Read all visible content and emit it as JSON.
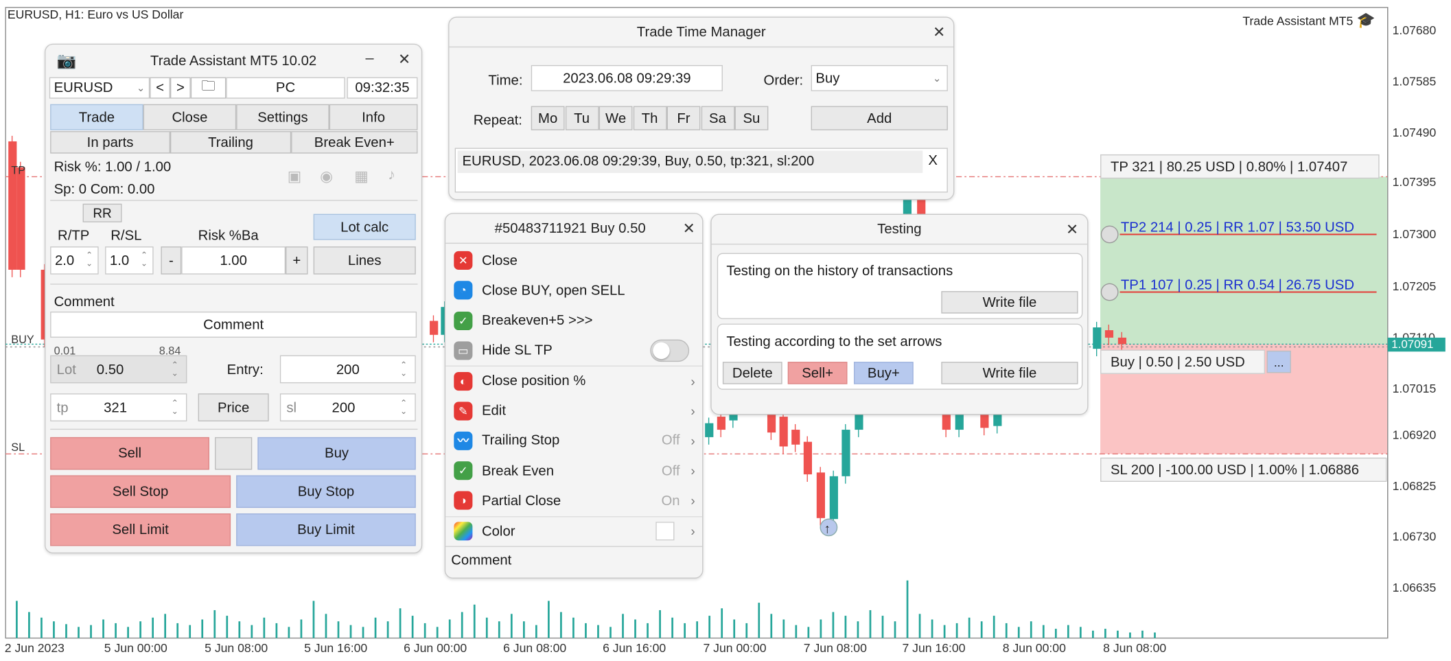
{
  "chart": {
    "title": "EURUSD, H1:  Euro vs US Dollar",
    "brand": "Trade Assistant MT5",
    "price_ticks": [
      "1.07680",
      "1.07585",
      "1.07490",
      "1.07395",
      "1.07300",
      "1.07205",
      "1.07110",
      "1.07015",
      "1.06920",
      "1.06825",
      "1.06730",
      "1.06635"
    ],
    "current_price": "1.07091",
    "time_ticks": [
      "2 Jun 2023",
      "5 Jun 00:00",
      "5 Jun 08:00",
      "5 Jun 16:00",
      "6 Jun 00:00",
      "6 Jun 08:00",
      "6 Jun 16:00",
      "7 Jun 00:00",
      "7 Jun 08:00",
      "7 Jun 16:00",
      "8 Jun 00:00",
      "8 Jun 08:00"
    ],
    "line_labels": {
      "tp": "TP",
      "buy": "BUY",
      "sl": "SL"
    },
    "colors": {
      "bull": "#26a69a",
      "bear": "#ef5350",
      "tp_zone": "#c8e6c9",
      "sl_zone": "#fbc4c4",
      "level_line": "#e57373"
    }
  },
  "assistant": {
    "title": "Trade Assistant MT5 10.02",
    "symbol": "EURUSD",
    "prev": "<",
    "next": ">",
    "source": "PC",
    "time": "09:32:35",
    "tabs": [
      "Trade",
      "Close",
      "Settings",
      "Info"
    ],
    "subtabs": [
      "In parts",
      "Trailing",
      "Break Even+"
    ],
    "risk_text": "Risk %: 1.00 /  1.00",
    "spread_text": "Sp: 0  Com: 0.00",
    "rr_label": "RR",
    "rtp_label": "R/TP",
    "rsl_label": "R/SL",
    "risk_ba_label": "Risk %Ba",
    "lot_calc": "Lot calc",
    "rtp_value": "2.0",
    "rsl_value": "1.0",
    "minus": "-",
    "plus": "+",
    "risk_value": "1.00",
    "lines": "Lines",
    "comment_label": "Comment",
    "comment_value": "Comment",
    "lot_min": "0.01",
    "lot_max": "8.84",
    "lot_label": "Lot",
    "lot_value": "0.50",
    "entry_label": "Entry:",
    "entry_value": "200",
    "tp_label": "tp",
    "tp_value": "321",
    "price_btn": "Price",
    "sl_label": "sl",
    "sl_value": "200",
    "sell": "Sell",
    "buy": "Buy",
    "sell_stop": "Sell Stop",
    "buy_stop": "Buy Stop",
    "sell_limit": "Sell Limit",
    "buy_limit": "Buy Limit"
  },
  "ttm": {
    "title": "Trade Time Manager",
    "time_label": "Time:",
    "time_value": "2023.06.08 09:29:39",
    "order_label": "Order:",
    "order_value": "Buy",
    "repeat_label": "Repeat:",
    "days": [
      "Mo",
      "Tu",
      "We",
      "Th",
      "Fr",
      "Sa",
      "Su"
    ],
    "add": "Add",
    "entry": "EURUSD, 2023.06.08 09:29:39, Buy, 0.50, tp:321, sl:200",
    "remove": "X"
  },
  "order_menu": {
    "title": "#50483711921 Buy 0.50",
    "items": [
      {
        "label": "Close",
        "state": "",
        "arrow": ""
      },
      {
        "label": "Close BUY, open SELL",
        "state": "",
        "arrow": ""
      },
      {
        "label": "Breakeven+5 >>>",
        "state": "",
        "arrow": ""
      },
      {
        "label": "Hide SL TP",
        "state": "",
        "arrow": ""
      },
      {
        "label": "Close position %",
        "state": "",
        "arrow": "›"
      },
      {
        "label": "Edit",
        "state": "",
        "arrow": "›"
      },
      {
        "label": "Trailing Stop",
        "state": "Off",
        "arrow": "›"
      },
      {
        "label": "Break Even",
        "state": "Off",
        "arrow": "›"
      },
      {
        "label": "Partial Close",
        "state": "On",
        "arrow": "›"
      },
      {
        "label": "Color",
        "state": "",
        "arrow": "›"
      }
    ],
    "comment": "Comment"
  },
  "testing": {
    "title": "Testing",
    "history_label": "Testing on the history of transactions",
    "write_file": "Write file",
    "arrows_label": "Testing according to the set arrows",
    "delete": "Delete",
    "sell_plus": "Sell+",
    "buy_plus": "Buy+",
    "write_file2": "Write file"
  },
  "levels": {
    "tp": "TP 321 | 80.25 USD | 0.80% | 1.07407",
    "tp2": "TP2 214 | 0.25 | RR 1.07 | 53.50 USD",
    "tp1": "TP1 107 | 0.25 | RR 0.54 | 26.75 USD",
    "buy": "Buy | 0.50 | 2.50 USD",
    "more": "...",
    "sl": "SL 200 | -100.00 USD | 1.00% | 1.06886"
  }
}
